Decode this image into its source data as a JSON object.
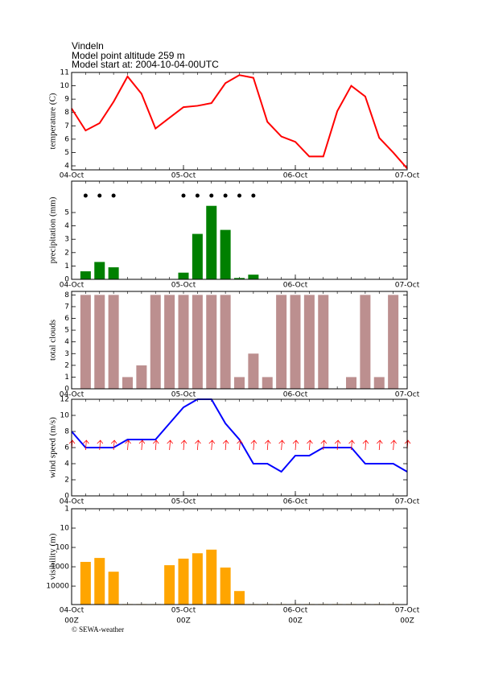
{
  "header": {
    "lines": [
      "Vindeln",
      "Model point altitude  259 m",
      "Model start at: 2004-10-04-00UTC"
    ]
  },
  "footer": "© SEWA-weather",
  "chart_data": [
    {
      "type": "line",
      "ylabel": "temperature (C)",
      "color": "#ff0000",
      "x": [
        0,
        3,
        6,
        9,
        12,
        15,
        18,
        21,
        24,
        27,
        30,
        33,
        36,
        39,
        42,
        45,
        48,
        51,
        54,
        57,
        60,
        63,
        66,
        69,
        72
      ],
      "values": [
        8.3,
        6.65,
        7.2,
        8.8,
        10.7,
        9.4,
        6.8,
        7.6,
        8.4,
        8.5,
        8.7,
        10.2,
        10.8,
        10.6,
        7.3,
        6.2,
        5.8,
        4.7,
        4.7,
        8.1,
        10.0,
        9.2,
        6.1,
        5.0,
        3.8
      ],
      "xlim": [
        0,
        72
      ],
      "xticks": [
        {
          "value": 0,
          "label": "04-Oct"
        },
        {
          "value": 24,
          "label": "05-Oct"
        },
        {
          "value": 48,
          "label": "06-Oct"
        },
        {
          "value": 72,
          "label": "07-Oct"
        }
      ],
      "ylim": [
        3.7,
        11
      ],
      "yticks": [
        4,
        5,
        6,
        7,
        8,
        9,
        10,
        11
      ]
    },
    {
      "type": "bar",
      "ylabel": "precipitation (mm)",
      "color": "#008000",
      "markers": true,
      "x": [
        3,
        6,
        9,
        24,
        27,
        30,
        33,
        36,
        39
      ],
      "values": [
        0.6,
        1.3,
        0.9,
        0.5,
        3.4,
        5.5,
        3.7,
        0.1,
        0.35
      ],
      "xlim": [
        0,
        72
      ],
      "xticks": [
        {
          "value": 0,
          "label": "04-Oct"
        },
        {
          "value": 24,
          "label": "05-Oct"
        },
        {
          "value": 48,
          "label": "06-Oct"
        },
        {
          "value": 72,
          "label": "07-Oct"
        }
      ],
      "ylim": [
        0,
        7.35
      ],
      "yticks": [
        0,
        1,
        2,
        3,
        4,
        5
      ]
    },
    {
      "type": "bar",
      "ylabel": "total clouds",
      "color": "#bc8f8f",
      "x": [
        3,
        6,
        9,
        12,
        15,
        18,
        21,
        24,
        27,
        30,
        33,
        36,
        39,
        42,
        45,
        48,
        51,
        54,
        57,
        60,
        63,
        66,
        69
      ],
      "values": [
        8,
        8,
        8,
        1,
        2,
        8,
        8,
        8,
        8,
        8,
        8,
        1,
        3,
        1,
        8,
        8,
        8,
        8,
        0,
        1,
        8,
        1,
        8
      ],
      "xlim": [
        0,
        72
      ],
      "xticks": [
        {
          "value": 0,
          "label": "04-Oct"
        },
        {
          "value": 24,
          "label": "05-Oct"
        },
        {
          "value": 48,
          "label": "06-Oct"
        },
        {
          "value": 72,
          "label": "07-Oct"
        }
      ],
      "ylim": [
        0,
        8.3
      ],
      "yticks": [
        0,
        1,
        2,
        3,
        4,
        5,
        6,
        7,
        8
      ]
    },
    {
      "type": "line",
      "ylabel": "wind speed (m/s)",
      "color": "#0000ff",
      "wind_arrows": true,
      "x": [
        0,
        3,
        6,
        9,
        12,
        15,
        18,
        21,
        24,
        27,
        30,
        33,
        36,
        39,
        42,
        45,
        48,
        51,
        54,
        57,
        60,
        63,
        66,
        69,
        72
      ],
      "values": [
        8,
        6,
        6,
        6,
        7,
        7,
        7,
        9,
        11,
        12,
        12,
        9,
        7,
        4,
        4,
        3,
        5,
        5,
        6,
        6,
        6,
        4,
        4,
        4,
        3
      ],
      "xlim": [
        0,
        72
      ],
      "xticks": [
        {
          "value": 0,
          "label": "04-Oct"
        },
        {
          "value": 24,
          "label": "05-Oct"
        },
        {
          "value": 48,
          "label": "06-Oct"
        },
        {
          "value": 72,
          "label": "07-Oct"
        }
      ],
      "ylim": [
        0,
        12
      ],
      "yticks": [
        0,
        2,
        4,
        6,
        8,
        10,
        12
      ]
    },
    {
      "type": "bar",
      "ylabel": "visibility (m)",
      "color": "#ffa500",
      "log": true,
      "reversed": true,
      "x": [
        3,
        6,
        9,
        12,
        15,
        18,
        21,
        24,
        27,
        30,
        33,
        36,
        39,
        42,
        45,
        48,
        51,
        54,
        57,
        60,
        63,
        66,
        69
      ],
      "values": [
        560,
        350,
        1800,
        85000,
        85000,
        85000,
        830,
        380,
        200,
        130,
        1100,
        18000,
        85000,
        85000,
        85000,
        85000,
        85000,
        85000,
        85000,
        85000,
        85000,
        85000,
        85000
      ],
      "xlim": [
        0,
        72
      ],
      "xticks": [
        {
          "value": 0,
          "label": "04-Oct"
        },
        {
          "value": 24,
          "label": "05-Oct"
        },
        {
          "value": 48,
          "label": "06-Oct"
        },
        {
          "value": 72,
          "label": "07-Oct"
        }
      ],
      "time_labels": [
        "00Z",
        "00Z",
        "00Z",
        "00Z"
      ],
      "ylim": [
        1,
        90000
      ],
      "yticks": [
        1,
        10,
        100,
        1000,
        10000
      ]
    }
  ]
}
